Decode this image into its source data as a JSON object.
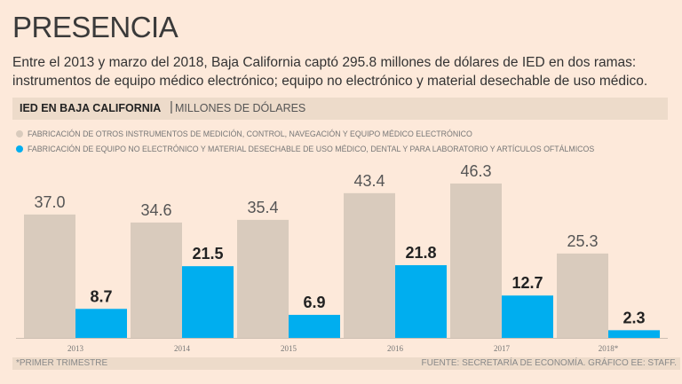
{
  "title": "PRESENCIA",
  "subtitle": "Entre el 2013 y marzo del 2018, Baja California captó 295.8 millones de dólares de IED en dos ramas: instrumentos de equipo médico electrónico; equipo no electrónico y material desechable de uso médico.",
  "header": {
    "main": "IED EN BAJA CALIFORNIA",
    "unit": "MILLONES DE DÓLARES"
  },
  "footer": {
    "note": "*PRIMER TRIMESTRE",
    "source": "FUENTE: SECRETARÍA DE ECONOMÍA. GRÁFICO EE: STAFF."
  },
  "chart_data": {
    "type": "bar",
    "categories": [
      "2013",
      "2014",
      "2015",
      "2016",
      "2017",
      "2018*"
    ],
    "series": [
      {
        "name": "FABRICACIÓN DE OTROS INSTRUMENTOS DE MEDICIÓN, CONTROL, NAVEGACIÓN Y EQUIPO MÉDICO ELECTRÓNICO",
        "values": [
          37.0,
          34.6,
          35.4,
          43.4,
          46.3,
          25.3
        ],
        "color": "#d9cbbd"
      },
      {
        "name": "FABRICACIÓN DE EQUIPO NO ELECTRÓNICO Y MATERIAL DESECHABLE DE USO MÉDICO, DENTAL Y PARA LABORATORIO Y ARTÍCULOS OFTÁLMICOS",
        "values": [
          8.7,
          21.5,
          6.9,
          21.8,
          12.7,
          2.3
        ],
        "color": "#00aeef"
      }
    ],
    "ylim": [
      0,
      50
    ],
    "grid": false,
    "legend": "top-left"
  }
}
